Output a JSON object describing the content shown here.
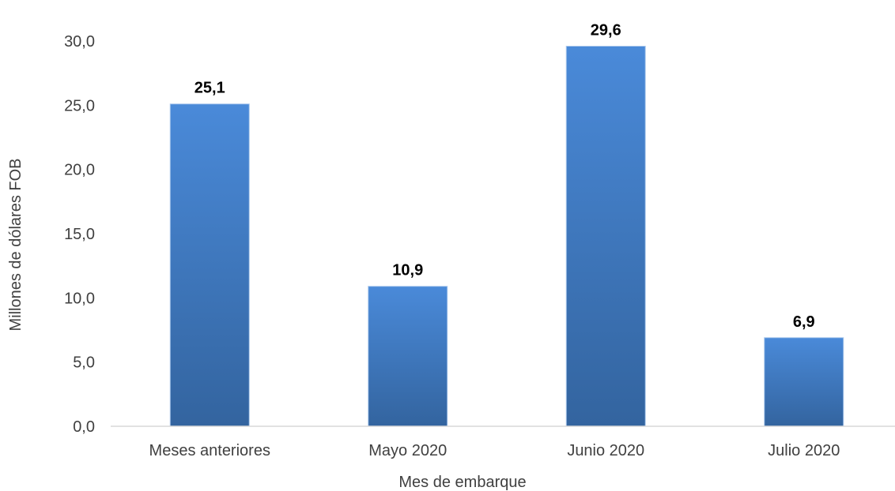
{
  "chart_data": {
    "type": "bar",
    "title": "",
    "xlabel": "Mes de embarque",
    "ylabel": "Millones de dólares FOB",
    "categories": [
      "Meses anteriores",
      "Mayo 2020",
      "Junio 2020",
      "Julio 2020"
    ],
    "values": [
      25.1,
      10.9,
      29.6,
      6.9
    ],
    "value_labels": [
      "25,1",
      "10,9",
      "29,6",
      "6,9"
    ],
    "ylim": [
      0,
      30
    ],
    "yticks": [
      0,
      5,
      10,
      15,
      20,
      25,
      30
    ],
    "ytick_labels": [
      "0,0",
      "5,0",
      "10,0",
      "15,0",
      "20,0",
      "25,0",
      "30,0"
    ],
    "grid": false,
    "legend": "none",
    "colors": {
      "bar_top": "#4a8ad9",
      "bar_bottom": "#33649f",
      "axis": "#d9d9d9"
    }
  }
}
